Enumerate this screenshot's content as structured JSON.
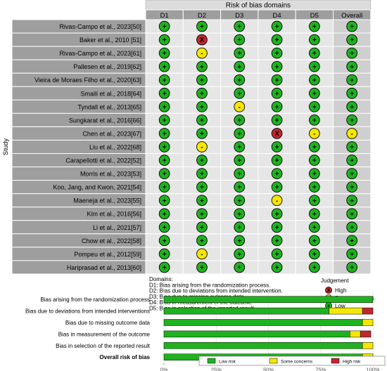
{
  "traffic_light": {
    "title": "Risk of bias domains",
    "y_axis_label": "Study",
    "domains": [
      "D1",
      "D2",
      "D3",
      "D4",
      "D5",
      "Overall"
    ],
    "studies": [
      {
        "name": "Rivas-Campo et al., 2023[50]",
        "ratings": [
          "low",
          "low",
          "low",
          "low",
          "low",
          "low"
        ]
      },
      {
        "name": "Baker et al., 2010 [51]",
        "ratings": [
          "low",
          "high",
          "low",
          "low",
          "low",
          "low"
        ]
      },
      {
        "name": "Rivas-Campo et al., 2023[61]",
        "ratings": [
          "low",
          "some",
          "low",
          "low",
          "low",
          "low"
        ]
      },
      {
        "name": "Pallesen et al., 2019[62]",
        "ratings": [
          "low",
          "low",
          "low",
          "low",
          "low",
          "low"
        ]
      },
      {
        "name": "Vieira de Moraes Filho et al., 2020[63]",
        "ratings": [
          "low",
          "low",
          "low",
          "low",
          "low",
          "low"
        ]
      },
      {
        "name": "Smaili et al., 2018[64]",
        "ratings": [
          "low",
          "low",
          "low",
          "low",
          "low",
          "low"
        ]
      },
      {
        "name": "Tyndall et al., 2013[65]",
        "ratings": [
          "low",
          "low",
          "some",
          "low",
          "low",
          "low"
        ]
      },
      {
        "name": "Sungkarat et al., 2016[66]",
        "ratings": [
          "low",
          "low",
          "low",
          "low",
          "low",
          "low"
        ]
      },
      {
        "name": "Chen et al., 2023[67]",
        "ratings": [
          "low",
          "low",
          "low",
          "high",
          "some",
          "some"
        ]
      },
      {
        "name": "Liu et al., 2022[68]",
        "ratings": [
          "low",
          "some",
          "low",
          "low",
          "low",
          "low"
        ]
      },
      {
        "name": "Carapellotti et al., 2022[52]",
        "ratings": [
          "low",
          "low",
          "low",
          "low",
          "low",
          "low"
        ]
      },
      {
        "name": "Morris et al., 2023[53]",
        "ratings": [
          "low",
          "low",
          "low",
          "low",
          "low",
          "low"
        ]
      },
      {
        "name": "Koo, Jang, and Kwon, 2021[54]",
        "ratings": [
          "low",
          "low",
          "low",
          "low",
          "low",
          "low"
        ]
      },
      {
        "name": "Maeneja et al., 2023[55]",
        "ratings": [
          "low",
          "low",
          "low",
          "some",
          "low",
          "low"
        ]
      },
      {
        "name": "Kim et al., 2016[56]",
        "ratings": [
          "low",
          "low",
          "low",
          "low",
          "low",
          "low"
        ]
      },
      {
        "name": "Li et al., 2021[57]",
        "ratings": [
          "low",
          "low",
          "low",
          "low",
          "low",
          "low"
        ]
      },
      {
        "name": "Chow et al., 2022[58]",
        "ratings": [
          "low",
          "low",
          "low",
          "low",
          "low",
          "low"
        ]
      },
      {
        "name": "Pompeu et al., 2012[59]",
        "ratings": [
          "low",
          "some",
          "low",
          "low",
          "low",
          "low"
        ]
      },
      {
        "name": "Hariprasad et al., 2013[60]",
        "ratings": [
          "low",
          "low",
          "low",
          "low",
          "low",
          "low"
        ]
      }
    ],
    "domains_heading": "Domains:",
    "domain_descriptions": [
      "D1: Bias arising from the randomization process.",
      "D2: Bias due to deviations from intended intervention.",
      "D3: Bias due to missing outcome data.",
      "D4: Bias in measurement of the outcome.",
      "D5: Bias in selection of the reported result."
    ],
    "judgement_heading": "Judgement",
    "judgements": [
      {
        "key": "high",
        "label": "High",
        "symbol": "X",
        "color": "#c1272d"
      },
      {
        "key": "some",
        "label": "Some concerns",
        "symbol": "-",
        "color": "#f5e700"
      },
      {
        "key": "low",
        "label": "Low",
        "symbol": "+",
        "color": "#1fb21f"
      }
    ]
  },
  "chart_data": {
    "type": "bar",
    "orientation": "horizontal-stacked-percent",
    "categories": [
      "Bias arising from the randomization process",
      "Bias due to deviations from intended interventions",
      "Bias due to missing outcome data",
      "Bias in measurement of the outcome",
      "Bias in selection of the reported result",
      "Overall risk of bias"
    ],
    "series": [
      {
        "name": "Low risk",
        "color": "#1fb21f",
        "values": [
          100,
          79,
          95,
          89,
          95,
          95
        ]
      },
      {
        "name": "Some concerns",
        "color": "#f5e700",
        "values": [
          0,
          16,
          5,
          5,
          5,
          5
        ]
      },
      {
        "name": "High risk",
        "color": "#c1272d",
        "values": [
          0,
          5,
          0,
          5,
          0,
          0
        ]
      }
    ],
    "x_ticks": [
      "0%",
      "25%",
      "50%",
      "75%",
      "100%"
    ],
    "xlim": [
      0,
      100
    ],
    "grid": true,
    "legend_position": "bottom"
  }
}
